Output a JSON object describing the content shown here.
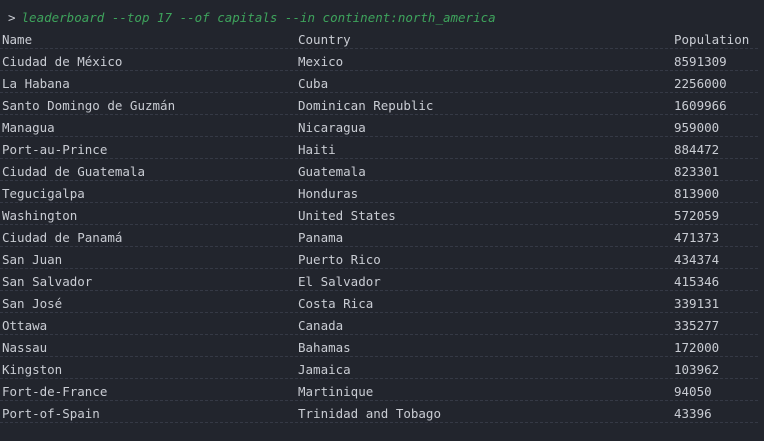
{
  "prompt": {
    "symbol": ">",
    "command": "leaderboard --top 17 --of capitals --in continent:north_america"
  },
  "table": {
    "columns": [
      "Name",
      "Country",
      "Population"
    ],
    "rows": [
      {
        "name": "Ciudad de México",
        "country": "Mexico",
        "population": "8591309"
      },
      {
        "name": "La Habana",
        "country": "Cuba",
        "population": "2256000"
      },
      {
        "name": "Santo Domingo de Guzmán",
        "country": "Dominican Republic",
        "population": "1609966"
      },
      {
        "name": "Managua",
        "country": "Nicaragua",
        "population": "959000"
      },
      {
        "name": "Port-au-Prince",
        "country": "Haiti",
        "population": "884472"
      },
      {
        "name": "Ciudad de Guatemala",
        "country": "Guatemala",
        "population": "823301"
      },
      {
        "name": "Tegucigalpa",
        "country": "Honduras",
        "population": "813900"
      },
      {
        "name": "Washington",
        "country": "United States",
        "population": "572059"
      },
      {
        "name": "Ciudad de Panamá",
        "country": "Panama",
        "population": "471373"
      },
      {
        "name": "San Juan",
        "country": "Puerto Rico",
        "population": "434374"
      },
      {
        "name": "San Salvador",
        "country": "El Salvador",
        "population": "415346"
      },
      {
        "name": "San José",
        "country": "Costa Rica",
        "population": "339131"
      },
      {
        "name": "Ottawa",
        "country": "Canada",
        "population": "335277"
      },
      {
        "name": "Nassau",
        "country": "Bahamas",
        "population": "172000"
      },
      {
        "name": "Kingston",
        "country": "Jamaica",
        "population": "103962"
      },
      {
        "name": "Fort-de-France",
        "country": "Martinique",
        "population": "94050"
      },
      {
        "name": "Port-of-Spain",
        "country": "Trinidad and Tobago",
        "population": "43396"
      }
    ]
  },
  "colors": {
    "background": "#22252d",
    "text": "#c9ccd3",
    "command": "#3ea35c",
    "row_separator": "#353945"
  }
}
